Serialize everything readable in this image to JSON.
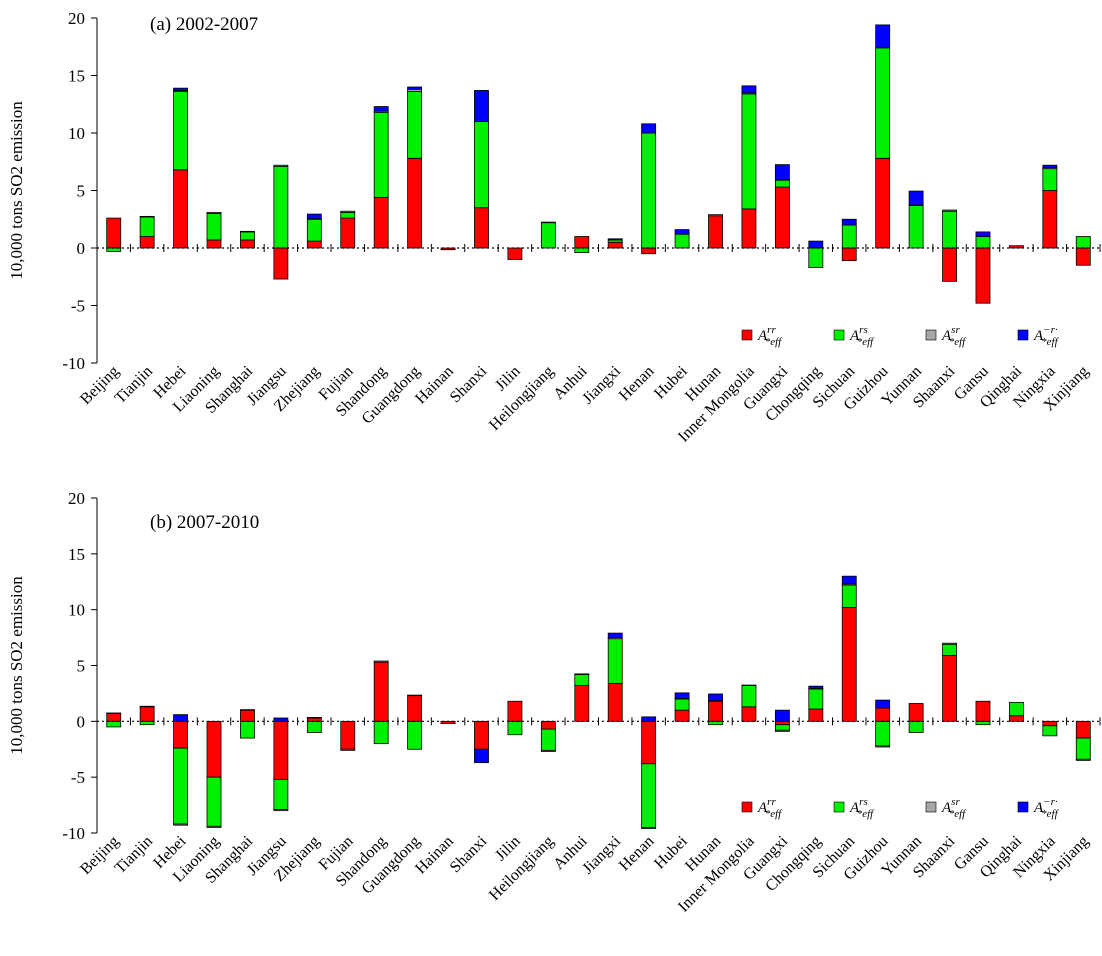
{
  "colors": {
    "rr": "#ff0000",
    "rs": "#00ee00",
    "sr": "#a6a6a6",
    "r_dot": "#0000ff",
    "axis": "#000000"
  },
  "chart_data": [
    {
      "type": "bar",
      "stacked": true,
      "title": "(a) 2002-2007",
      "ylabel": "10,000 tons SO2 emission",
      "ylim": [
        -10,
        20
      ],
      "yticks": [
        -10,
        -5,
        0,
        5,
        10,
        15,
        20
      ],
      "grid": false,
      "legend_position": "bottom-right",
      "categories": [
        "Beijing",
        "Tianjin",
        "Hebei",
        "Liaoning",
        "Shanghai",
        "Jiangsu",
        "Zhejiang",
        "Fujian",
        "Shandong",
        "Guangdong",
        "Hainan",
        "Shanxi",
        "Jilin",
        "Heilongjiang",
        "Anhui",
        "Jiangxi",
        "Henan",
        "Hubei",
        "Hunan",
        "Inner Mongolia",
        "Guangxi",
        "Chongqing",
        "Sichuan",
        "Guizhou",
        "Yunnan",
        "Shaanxi",
        "Gansu",
        "Qinghai",
        "Ningxia",
        "Xinjiang"
      ],
      "series": [
        {
          "key": "rr",
          "name": "A*eff rr",
          "values": [
            2.6,
            1.0,
            6.8,
            0.7,
            0.7,
            -2.7,
            0.6,
            2.6,
            4.4,
            7.8,
            -0.15,
            3.5,
            -1.0,
            0.0,
            1.0,
            0.5,
            -0.5,
            0.0,
            2.8,
            3.4,
            5.3,
            0.0,
            -1.1,
            7.8,
            0.0,
            -2.9,
            -4.8,
            0.2,
            5.0,
            -1.5
          ]
        },
        {
          "key": "rs",
          "name": "A*eff rs",
          "values": [
            -0.3,
            1.7,
            6.8,
            2.3,
            0.7,
            7.1,
            1.9,
            0.5,
            7.4,
            5.8,
            0.0,
            7.5,
            0.0,
            2.2,
            -0.4,
            0.2,
            10.0,
            1.2,
            0.0,
            10.0,
            0.6,
            -1.7,
            2.0,
            9.6,
            3.7,
            3.2,
            1.0,
            0.0,
            1.9,
            1.0
          ]
        },
        {
          "key": "sr",
          "name": "A*eff sr",
          "values": [
            0.0,
            0.05,
            0.1,
            0.1,
            0.05,
            0.1,
            0.05,
            0.1,
            0.1,
            0.2,
            0.0,
            0.0,
            0.0,
            0.05,
            0.0,
            0.0,
            0.0,
            0.0,
            0.1,
            0.1,
            0.05,
            0.0,
            0.0,
            0.0,
            0.05,
            0.1,
            0.0,
            0.0,
            0.1,
            0.0
          ]
        },
        {
          "key": "r_dot",
          "name": "A*eff -r·",
          "values": [
            0.0,
            0.0,
            0.2,
            0.0,
            0.0,
            0.0,
            0.4,
            0.0,
            0.4,
            0.2,
            0.0,
            2.7,
            0.0,
            0.0,
            0.0,
            0.1,
            0.8,
            0.4,
            0.0,
            0.6,
            1.3,
            0.6,
            0.5,
            2.0,
            1.2,
            0.0,
            0.4,
            0.0,
            0.2,
            0.0
          ]
        }
      ]
    },
    {
      "type": "bar",
      "stacked": true,
      "title": "(b) 2007-2010",
      "ylabel": "10,000 tons SO2 emission",
      "ylim": [
        -10,
        20
      ],
      "yticks": [
        -10,
        -5,
        0,
        5,
        10,
        15,
        20
      ],
      "grid": false,
      "legend_position": "bottom-right",
      "categories": [
        "Beijing",
        "Tianjin",
        "Hebei",
        "Liaoning",
        "Shanghai",
        "Jiangsu",
        "Zhejiang",
        "Fujian",
        "Shandong",
        "Guangdong",
        "Hainan",
        "Shanxi",
        "Jilin",
        "Heilongjiang",
        "Anhui",
        "Jiangxi",
        "Henan",
        "Hubei",
        "Hunan",
        "Inner Mongolia",
        "Guangxi",
        "Chongqing",
        "Sichuan",
        "Guizhou",
        "Yunnan",
        "Shaanxi",
        "Gansu",
        "Qinghai",
        "Ningxia",
        "Xinjiang"
      ],
      "series": [
        {
          "key": "rr",
          "name": "A*eff rr",
          "values": [
            0.7,
            1.3,
            -2.4,
            -5.0,
            1.0,
            -5.2,
            0.3,
            -2.5,
            5.3,
            2.3,
            -0.2,
            -2.5,
            1.8,
            -0.7,
            3.2,
            3.4,
            -3.8,
            1.0,
            1.8,
            1.3,
            -0.3,
            1.1,
            10.2,
            1.2,
            1.6,
            5.9,
            1.8,
            0.5,
            -0.4,
            -1.5
          ]
        },
        {
          "key": "rs",
          "name": "A*eff rs",
          "values": [
            -0.5,
            -0.3,
            -6.8,
            -4.4,
            -1.5,
            -2.7,
            -1.0,
            0.0,
            -2.0,
            -2.5,
            0.0,
            0.0,
            -1.2,
            -1.9,
            1.0,
            4.0,
            -5.7,
            1.0,
            -0.3,
            1.9,
            -0.5,
            1.8,
            2.0,
            -2.2,
            -1.0,
            1.0,
            -0.3,
            1.2,
            -0.9,
            -1.9
          ]
        },
        {
          "key": "sr",
          "name": "A*eff sr",
          "values": [
            0.05,
            0.05,
            -0.1,
            -0.1,
            0.05,
            -0.1,
            0.05,
            -0.1,
            0.1,
            0.05,
            0.0,
            0.0,
            0.0,
            -0.1,
            0.05,
            0.1,
            -0.1,
            0.05,
            0.05,
            0.05,
            -0.1,
            0.05,
            0.1,
            -0.1,
            0.0,
            0.1,
            0.0,
            0.0,
            0.0,
            -0.1
          ]
        },
        {
          "key": "r_dot",
          "name": "A*eff -r·",
          "values": [
            0.0,
            0.0,
            0.6,
            0.0,
            0.0,
            0.3,
            0.0,
            0.0,
            0.0,
            0.0,
            0.0,
            -1.2,
            0.0,
            0.0,
            0.0,
            0.4,
            0.4,
            0.5,
            0.6,
            0.0,
            1.0,
            0.2,
            0.7,
            0.7,
            0.0,
            0.0,
            0.0,
            0.0,
            0.0,
            0.0
          ]
        }
      ]
    }
  ]
}
